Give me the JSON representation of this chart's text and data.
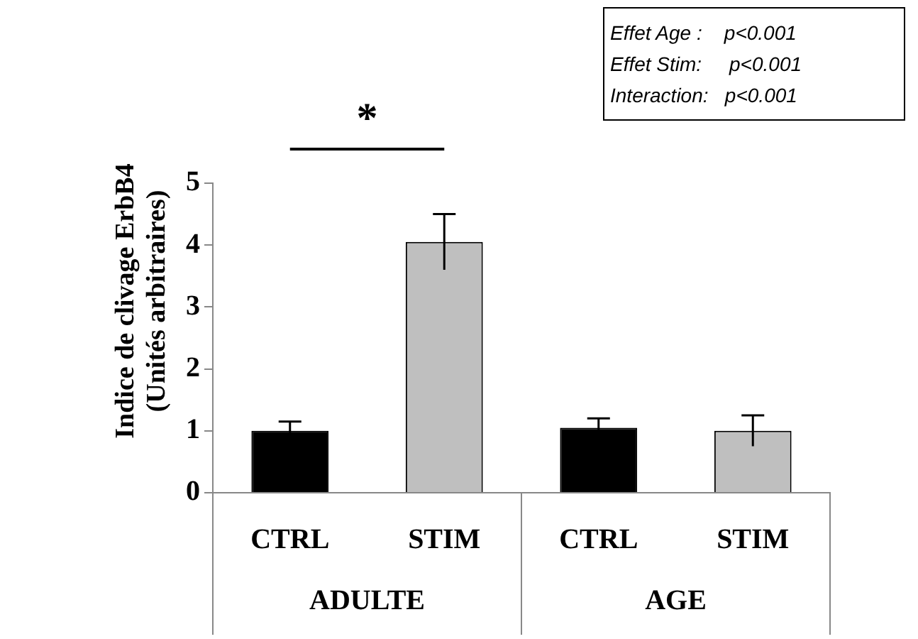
{
  "chart_data": {
    "type": "bar",
    "ylabel": "Indice de clivage ErbB4 (Unités arbitraires)",
    "categories": [
      "CTRL",
      "STIM",
      "CTRL",
      "STIM"
    ],
    "values": [
      1.0,
      4.05,
      1.05,
      1.0
    ],
    "errors": [
      0.15,
      0.45,
      0.15,
      0.25
    ],
    "colors": [
      "#000000",
      "#bfbfbf",
      "#000000",
      "#bfbfbf"
    ],
    "ylim": [
      0,
      5
    ],
    "yticks": [
      0,
      1,
      2,
      3,
      4,
      5
    ],
    "grid": false,
    "legend": false,
    "annotations": [
      "*",
      "ADULTE",
      "AGE",
      "Effet Age :    p<0.001",
      "Effet Stim:     p<0.001",
      "Interaction:   p<0.001"
    ]
  }
}
